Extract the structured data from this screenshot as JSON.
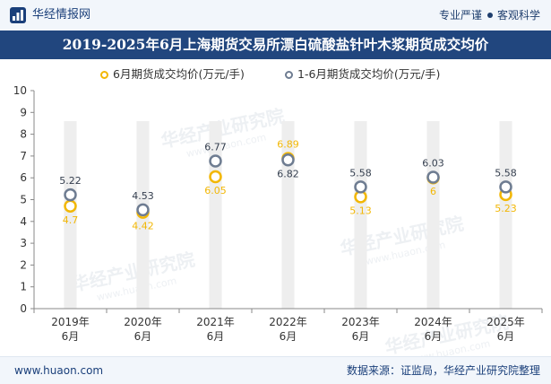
{
  "header": {
    "brand_name": "华经情报网",
    "tagline_left": "专业严谨",
    "tagline_right": "客观科学"
  },
  "chart_title": "2019-2025年6月上海期货交易所漂白硫酸盐针叶木浆期货成交均价",
  "watermark": {
    "line1": "华经产业研究院",
    "line2": "www.huaon.com"
  },
  "footer": {
    "url": "www.huaon.com",
    "source": "数据来源：证监局，华经产业研究院整理"
  },
  "colors": {
    "series1": "#f2b705",
    "series2": "#6e7c91",
    "band": "#eeeeee",
    "title_bg": "#21467e"
  },
  "chart_data": {
    "type": "scatter",
    "title": "2019-2025年6月上海期货交易所漂白硫酸盐针叶木浆期货成交均价",
    "categories": [
      [
        "2019年",
        "6月"
      ],
      [
        "2020年",
        "6月"
      ],
      [
        "2021年",
        "6月"
      ],
      [
        "2022年",
        "6月"
      ],
      [
        "2023年",
        "6月"
      ],
      [
        "2024年",
        "6月"
      ],
      [
        "2025年",
        "6月"
      ]
    ],
    "y_ticks": [
      0,
      1,
      2,
      3,
      4,
      5,
      6,
      7,
      8,
      9,
      10
    ],
    "ylim": [
      0,
      10
    ],
    "legend_position": "top",
    "series": [
      {
        "name": "6月期货成交均价(万元/手)",
        "values": [
          4.7,
          4.42,
          6.05,
          6.89,
          5.13,
          6,
          5.23
        ],
        "labels": [
          "4.7",
          "4.42",
          "6.05",
          "6.89",
          "5.13",
          "6",
          "5.23"
        ]
      },
      {
        "name": "1-6月期货成交均价(万元/手)",
        "values": [
          5.22,
          4.53,
          6.77,
          6.82,
          5.58,
          6.03,
          5.58
        ],
        "labels": [
          "5.22",
          "4.53",
          "6.77",
          "6.82",
          "5.58",
          "6.03",
          "5.58"
        ]
      }
    ]
  }
}
